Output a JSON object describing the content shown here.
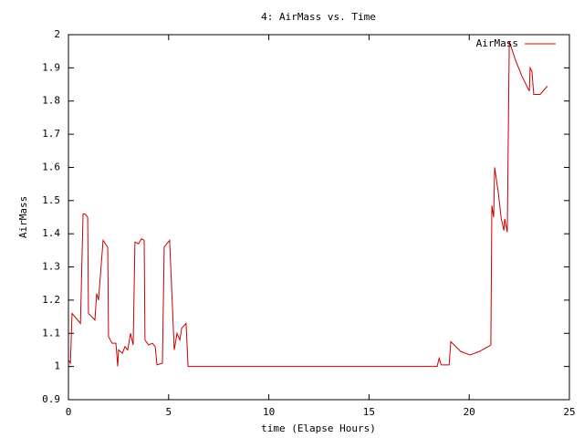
{
  "chart_data": {
    "type": "line",
    "title": "4: AirMass vs. Time",
    "x_label": "time (Elapse Hours)",
    "y_label": "AirMass",
    "xlim": [
      0,
      25
    ],
    "ylim": [
      0.9,
      2
    ],
    "xticks": [
      0,
      5,
      10,
      15,
      20,
      25
    ],
    "yticks": [
      0.9,
      1,
      1.1,
      1.2,
      1.3,
      1.4,
      1.5,
      1.6,
      1.7,
      1.8,
      1.9,
      2
    ],
    "grid": false,
    "legend": "upper right",
    "series": [
      {
        "name": "AirMass",
        "color": "#cc0000",
        "x": [
          0,
          0.1,
          0.18,
          0.6,
          0.73,
          0.82,
          0.96,
          1.0,
          1.32,
          1.41,
          1.5,
          1.73,
          1.96,
          2.0,
          2.18,
          2.37,
          2.46,
          2.5,
          2.69,
          2.82,
          2.96,
          3.1,
          3.23,
          3.32,
          3.5,
          3.64,
          3.78,
          3.82,
          4.0,
          4.19,
          4.33,
          4.42,
          4.69,
          4.78,
          5.05,
          5.28,
          5.42,
          5.56,
          5.65,
          5.87,
          5.97,
          18.4,
          18.5,
          18.6,
          19.0,
          19.08,
          19.58,
          20.04,
          20.5,
          20.95,
          21.08,
          21.13,
          21.22,
          21.27,
          21.45,
          21.6,
          21.73,
          21.77,
          21.9,
          22.0,
          22.3,
          22.63,
          23.0,
          23.04,
          23.13,
          23.22,
          23.54,
          23.9
        ],
        "values": [
          1.02,
          1.01,
          1.16,
          1.13,
          1.46,
          1.46,
          1.45,
          1.16,
          1.14,
          1.22,
          1.2,
          1.38,
          1.36,
          1.09,
          1.07,
          1.07,
          1.0,
          1.05,
          1.04,
          1.06,
          1.05,
          1.1,
          1.065,
          1.375,
          1.37,
          1.385,
          1.38,
          1.08,
          1.065,
          1.07,
          1.06,
          1.005,
          1.01,
          1.36,
          1.38,
          1.05,
          1.1,
          1.08,
          1.115,
          1.13,
          1.0,
          1.0,
          1.025,
          1.005,
          1.005,
          1.075,
          1.045,
          1.035,
          1.045,
          1.06,
          1.065,
          1.485,
          1.45,
          1.6,
          1.525,
          1.445,
          1.41,
          1.445,
          1.405,
          1.98,
          1.925,
          1.875,
          1.83,
          1.9,
          1.89,
          1.82,
          1.82,
          1.845
        ]
      }
    ]
  }
}
